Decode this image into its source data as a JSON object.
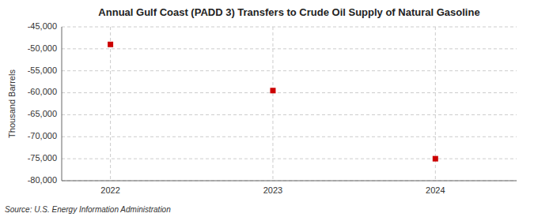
{
  "chart_data": {
    "type": "scatter",
    "title": "Annual Gulf Coast (PADD 3) Transfers to Crude Oil Supply of Natural Gasoline",
    "ylabel": "Thousand Barrels",
    "source": "Source: U.S. Energy Information Administration",
    "x": [
      2022,
      2023,
      2024
    ],
    "values": [
      -49000,
      -59500,
      -75000
    ],
    "color": "#cc0000",
    "marker": "square",
    "xlim": [
      2021.7,
      2024.5
    ],
    "xticks": [
      2022,
      2023,
      2024
    ],
    "ylim": [
      -80000,
      -45000
    ],
    "yticks": [
      {
        "value": -45000,
        "label": "-45,000"
      },
      {
        "value": -50000,
        "label": "-50,000"
      },
      {
        "value": -55000,
        "label": "-55,000"
      },
      {
        "value": -60000,
        "label": "-60,000"
      },
      {
        "value": -65000,
        "label": "-65,000"
      },
      {
        "value": -70000,
        "label": "-70,000"
      },
      {
        "value": -75000,
        "label": "-75,000"
      },
      {
        "value": -80000,
        "label": "-80,000"
      }
    ],
    "grid": true
  }
}
